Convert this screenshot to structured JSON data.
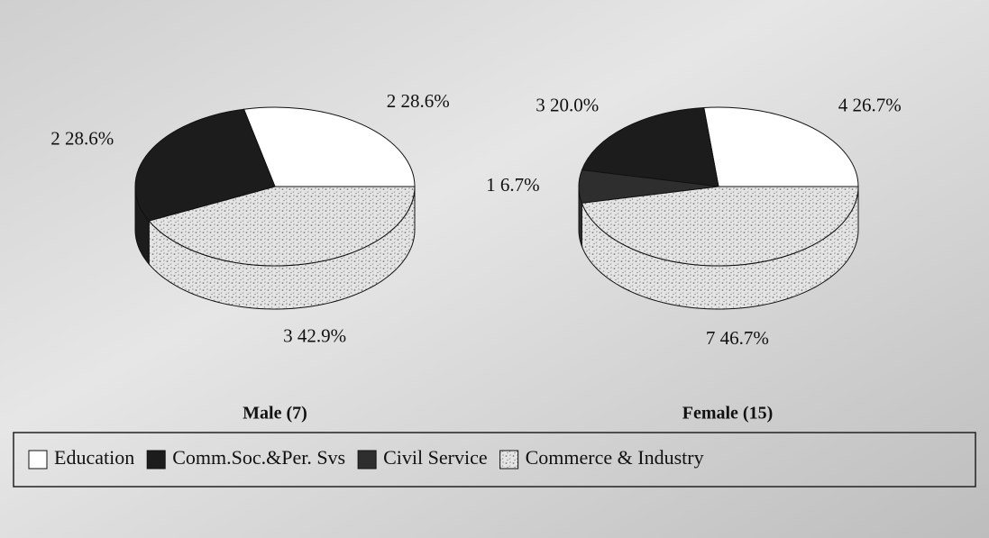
{
  "chart_data": {
    "type": "pie",
    "categories": [
      "Education",
      "Comm.Soc.&Per. Svs",
      "Civil Service",
      "Commerce & Industry"
    ],
    "colors": [
      "#ffffff",
      "#1c1c1c",
      "#2e2e2e",
      "#d4d4d4"
    ],
    "textured": [
      false,
      false,
      false,
      true
    ],
    "pies": [
      {
        "title": "Male (7)",
        "values": [
          28.6,
          28.6,
          null,
          42.9
        ],
        "value_labels": [
          "2  28.6%",
          "2  28.6%",
          null,
          "3 42.9%"
        ]
      },
      {
        "title": "Female (15)",
        "values": [
          26.7,
          20.0,
          6.7,
          46.7
        ],
        "value_labels": [
          "4  26.7%",
          "3  20.0%",
          "1  6.7%",
          "7  46.7%"
        ]
      }
    ]
  }
}
